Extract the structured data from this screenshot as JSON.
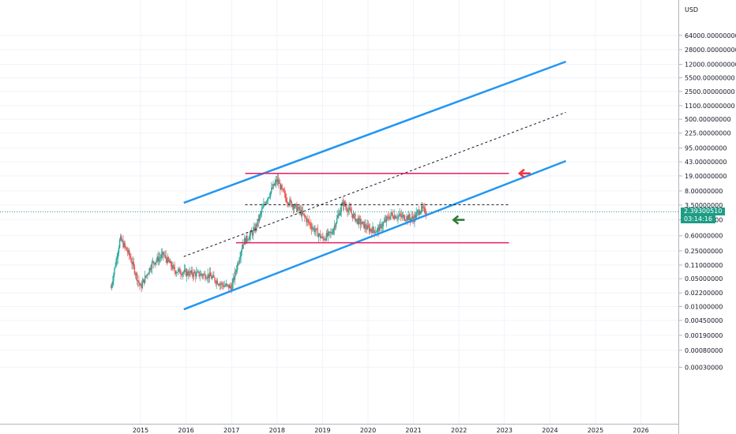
{
  "chart_data": {
    "type": "line",
    "title": "",
    "currency": "USD",
    "y_scale": "log",
    "ylim": [
      0.0003,
      64000
    ],
    "xlim": [
      2013.8,
      2027.0
    ],
    "x_ticks": [
      "2015",
      "2016",
      "2017",
      "2018",
      "2019",
      "2020",
      "2021",
      "2022",
      "2023",
      "2024",
      "2025",
      "2026"
    ],
    "y_ticks": [
      "64000.00000000",
      "28000.00000000",
      "12000.00000000",
      "5500.00000000",
      "2500.00000000",
      "1100.00000000",
      "500.00000000",
      "225.00000000",
      "95.00000000",
      "43.00000000",
      "19.00000000",
      "8.00000000",
      "3.50000000",
      "1.50000000",
      "0.60000000",
      "0.25000000",
      "0.11000000",
      "0.05000000",
      "0.02200000",
      "0.01000000",
      "0.00450000",
      "0.00190000",
      "0.00080000",
      "0.00030000"
    ],
    "grid": true,
    "last_price": {
      "value": "2.39300510",
      "countdown": "03:14:16",
      "color": "#1f9c86"
    },
    "price_series": [
      [
        2014.35,
        0.03
      ],
      [
        2014.55,
        0.5
      ],
      [
        2014.75,
        0.2
      ],
      [
        2015.0,
        0.03
      ],
      [
        2015.25,
        0.12
      ],
      [
        2015.5,
        0.2
      ],
      [
        2015.75,
        0.08
      ],
      [
        2016.0,
        0.07
      ],
      [
        2016.5,
        0.06
      ],
      [
        2016.8,
        0.035
      ],
      [
        2017.0,
        0.03
      ],
      [
        2017.25,
        0.4
      ],
      [
        2017.5,
        0.8
      ],
      [
        2017.75,
        4.5
      ],
      [
        2018.0,
        15
      ],
      [
        2018.2,
        5
      ],
      [
        2018.5,
        2.5
      ],
      [
        2018.8,
        0.9
      ],
      [
        2019.0,
        0.5
      ],
      [
        2019.2,
        0.7
      ],
      [
        2019.45,
        4
      ],
      [
        2019.75,
        1.5
      ],
      [
        2020.0,
        0.9
      ],
      [
        2020.2,
        0.8
      ],
      [
        2020.5,
        2.0
      ],
      [
        2020.75,
        1.8
      ],
      [
        2021.0,
        1.6
      ],
      [
        2021.15,
        2.8
      ],
      [
        2021.3,
        2.39
      ]
    ],
    "series": [
      {
        "kind": "trendline",
        "style": "solid",
        "color": "#2196f3",
        "points": [
          [
            2015.95,
            4.0
          ],
          [
            2024.35,
            14000
          ]
        ]
      },
      {
        "kind": "trendline",
        "style": "solid",
        "color": "#2196f3",
        "points": [
          [
            2015.95,
            0.0085
          ],
          [
            2024.35,
            45
          ]
        ]
      },
      {
        "kind": "trendline",
        "style": "dashed",
        "color": "#131722",
        "points": [
          [
            2015.95,
            0.18
          ],
          [
            2024.35,
            750
          ]
        ]
      },
      {
        "kind": "horizontal",
        "style": "solid",
        "color": "#e91e63",
        "points": [
          [
            2017.3,
            22
          ],
          [
            2023.1,
            22
          ]
        ]
      },
      {
        "kind": "horizontal",
        "style": "solid",
        "color": "#e91e63",
        "points": [
          [
            2017.1,
            0.4
          ],
          [
            2023.1,
            0.4
          ]
        ]
      },
      {
        "kind": "horizontal",
        "style": "dashed",
        "color": "#131722",
        "points": [
          [
            2017.3,
            3.6
          ],
          [
            2023.1,
            3.6
          ]
        ]
      }
    ],
    "annotations": [
      {
        "kind": "arrow-left",
        "color": "#f23645",
        "at": [
          2023.4,
          22
        ]
      },
      {
        "kind": "arrow-left",
        "color": "#2e7d32",
        "at": [
          2021.95,
          1.5
        ]
      }
    ]
  }
}
